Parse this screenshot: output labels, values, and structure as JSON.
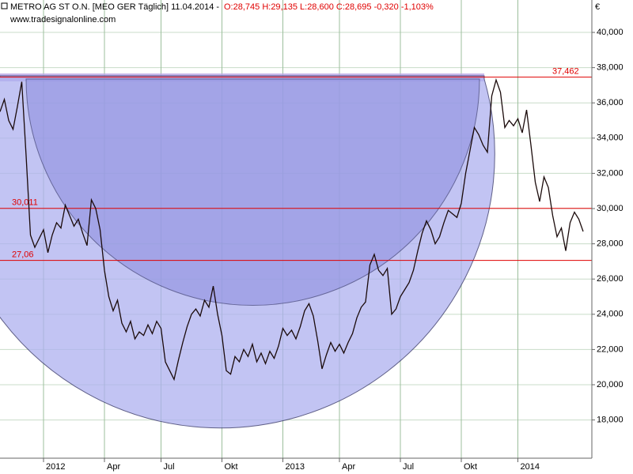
{
  "chart_data": {
    "type": "line",
    "title": "METRO AG ST O.N. [MEO GER  Täglich] 11.04.2014 - ",
    "quote": "O:28,745 H:29,135 L:28,600 C:28,695 -0,320 -1,103%",
    "subtitle": "www.tradesignalonline.com",
    "y_unit": "€",
    "categories": [
      null,
      null,
      null,
      null,
      null,
      null,
      null,
      null,
      null,
      null,
      "2012",
      null,
      null,
      null,
      null,
      null,
      null,
      null,
      null,
      null,
      null,
      null,
      null,
      null,
      "Apr",
      null,
      null,
      null,
      null,
      null,
      null,
      null,
      null,
      null,
      null,
      null,
      null,
      "Jul",
      null,
      null,
      null,
      null,
      null,
      null,
      null,
      null,
      null,
      null,
      null,
      null,
      null,
      "Okt",
      null,
      null,
      null,
      null,
      null,
      null,
      null,
      null,
      null,
      null,
      null,
      null,
      null,
      "2013",
      null,
      null,
      null,
      null,
      null,
      null,
      null,
      null,
      null,
      null,
      null,
      null,
      "Apr",
      null,
      null,
      null,
      null,
      null,
      null,
      null,
      null,
      null,
      null,
      null,
      null,
      null,
      "Jul",
      null,
      null,
      null,
      null,
      null,
      null,
      null,
      null,
      null,
      null,
      null,
      null,
      null,
      "Okt",
      null,
      null,
      null,
      null,
      null,
      null,
      null,
      null,
      null,
      null,
      null,
      null,
      "2014",
      null,
      null,
      null,
      null,
      null,
      null,
      null,
      null,
      null,
      null,
      null,
      null,
      null,
      null,
      null
    ],
    "series": [
      {
        "name": "METRO AG ST O.N.",
        "color": "#1a0a0a",
        "values": [
          35.5,
          36.2,
          35.0,
          34.5,
          35.8,
          37.2,
          33.0,
          28.5,
          27.8,
          28.3,
          28.8,
          27.5,
          28.5,
          29.2,
          28.9,
          30.2,
          29.6,
          29.0,
          29.4,
          28.6,
          27.9,
          30.5,
          30.0,
          28.8,
          26.5,
          25.0,
          24.2,
          24.8,
          23.5,
          23.0,
          23.6,
          22.6,
          23.0,
          22.8,
          23.4,
          22.9,
          23.6,
          23.2,
          21.3,
          20.8,
          20.3,
          21.4,
          22.4,
          23.3,
          24.0,
          24.3,
          23.9,
          24.8,
          24.4,
          25.6,
          24.0,
          22.8,
          20.8,
          20.6,
          21.6,
          21.3,
          22.0,
          21.6,
          22.3,
          21.3,
          21.8,
          21.2,
          21.9,
          21.5,
          22.2,
          23.2,
          22.8,
          23.1,
          22.6,
          23.3,
          24.2,
          24.6,
          23.9,
          22.5,
          20.9,
          21.7,
          22.4,
          21.9,
          22.3,
          21.8,
          22.4,
          22.9,
          23.8,
          24.4,
          24.7,
          26.8,
          27.4,
          26.5,
          26.2,
          26.6,
          24.0,
          24.3,
          25.0,
          25.4,
          25.8,
          26.5,
          27.6,
          28.6,
          29.3,
          28.8,
          28.0,
          28.4,
          29.2,
          29.9,
          29.7,
          29.5,
          30.3,
          32.0,
          33.3,
          34.6,
          34.2,
          33.6,
          33.2,
          36.4,
          37.3,
          36.6,
          34.6,
          35.0,
          34.7,
          35.1,
          34.3,
          35.6,
          33.6,
          31.5,
          30.4,
          31.8,
          31.2,
          29.6,
          28.4,
          28.9,
          27.6,
          29.2,
          29.8,
          29.4,
          28.7
        ]
      }
    ],
    "levels": [
      {
        "value": 37.462,
        "label": "37,462"
      },
      {
        "value": 30.011,
        "label": "30,011"
      },
      {
        "value": 27.06,
        "label": "27,06"
      }
    ],
    "level_color": "#e00000",
    "ylim": [
      15.83,
      41.84
    ],
    "yticks": [
      {
        "value": 18,
        "label": "18,000"
      },
      {
        "value": 20,
        "label": "20,000"
      },
      {
        "value": 22,
        "label": "22,000"
      },
      {
        "value": 24,
        "label": "24,000"
      },
      {
        "value": 26,
        "label": "26,000"
      },
      {
        "value": 28,
        "label": "28,000"
      },
      {
        "value": 30,
        "label": "30,000"
      },
      {
        "value": 32,
        "label": "32,000"
      },
      {
        "value": 34,
        "label": "34,000"
      },
      {
        "value": 36,
        "label": "36,000"
      },
      {
        "value": 38,
        "label": "38,000"
      },
      {
        "value": 40,
        "label": "40,000"
      }
    ],
    "grid": true
  }
}
